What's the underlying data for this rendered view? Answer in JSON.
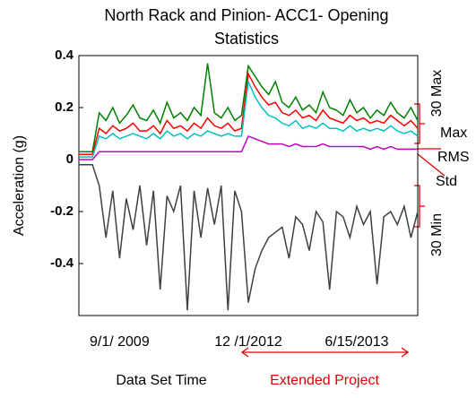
{
  "chart_data": {
    "type": "line",
    "title": "North Rack and Pinion- ACC1- Opening Statistics",
    "y_label": "Acceleration (g)",
    "x_label": "Data Set Time",
    "annotations": {
      "max30": "30 Max",
      "max": "Max",
      "rms": "RMS",
      "std": "Std",
      "min30": "30 Min",
      "extended": "Extended Project"
    },
    "xlim": [
      0,
      100
    ],
    "xticks": [
      {
        "value": 12,
        "label": "9/1/ 2009"
      },
      {
        "value": 50,
        "label": "12 /1/2012"
      },
      {
        "value": 82,
        "label": "6/15/2013"
      }
    ],
    "ylim": [
      -0.6,
      0.4
    ],
    "yticks": [
      0.4,
      0.2,
      0,
      -0.2,
      -0.4
    ],
    "x": [
      0,
      2,
      4,
      6,
      8,
      10,
      12,
      14,
      16,
      18,
      20,
      22,
      24,
      26,
      28,
      30,
      32,
      34,
      36,
      38,
      40,
      42,
      44,
      46,
      48,
      50,
      52,
      54,
      56,
      58,
      60,
      62,
      64,
      66,
      68,
      70,
      72,
      74,
      76,
      78,
      80,
      82,
      84,
      86,
      88,
      90,
      92,
      94,
      96,
      98,
      100
    ],
    "series": [
      {
        "color": "#008000",
        "values": [
          0.03,
          0.03,
          0.03,
          0.18,
          0.15,
          0.2,
          0.14,
          0.17,
          0.21,
          0.16,
          0.15,
          0.19,
          0.14,
          0.22,
          0.16,
          0.18,
          0.15,
          0.2,
          0.17,
          0.37,
          0.18,
          0.16,
          0.2,
          0.15,
          0.17,
          0.36,
          0.32,
          0.28,
          0.25,
          0.3,
          0.22,
          0.2,
          0.24,
          0.19,
          0.21,
          0.18,
          0.26,
          0.2,
          0.19,
          0.17,
          0.23,
          0.18,
          0.2,
          0.16,
          0.19,
          0.17,
          0.22,
          0.18,
          0.16,
          0.2,
          0.15
        ]
      },
      {
        "color": "#ff0000",
        "values": [
          0.02,
          0.02,
          0.02,
          0.12,
          0.1,
          0.13,
          0.11,
          0.12,
          0.14,
          0.11,
          0.11,
          0.13,
          0.1,
          0.15,
          0.12,
          0.13,
          0.11,
          0.14,
          0.12,
          0.16,
          0.13,
          0.12,
          0.14,
          0.11,
          0.12,
          0.33,
          0.28,
          0.24,
          0.21,
          0.22,
          0.18,
          0.17,
          0.19,
          0.16,
          0.17,
          0.15,
          0.19,
          0.16,
          0.15,
          0.14,
          0.17,
          0.15,
          0.16,
          0.14,
          0.15,
          0.14,
          0.17,
          0.15,
          0.13,
          0.15,
          0.12
        ]
      },
      {
        "color": "#00c0c0",
        "values": [
          0.01,
          0.01,
          0.01,
          0.09,
          0.08,
          0.1,
          0.08,
          0.09,
          0.1,
          0.09,
          0.08,
          0.1,
          0.08,
          0.11,
          0.09,
          0.1,
          0.08,
          0.1,
          0.09,
          0.11,
          0.1,
          0.09,
          0.1,
          0.09,
          0.09,
          0.3,
          0.24,
          0.2,
          0.17,
          0.16,
          0.14,
          0.13,
          0.15,
          0.12,
          0.13,
          0.12,
          0.14,
          0.12,
          0.12,
          0.11,
          0.13,
          0.11,
          0.12,
          0.11,
          0.12,
          0.11,
          0.13,
          0.11,
          0.1,
          0.11,
          0.09
        ]
      },
      {
        "color": "#c000c0",
        "values": [
          0.0,
          0.0,
          0.0,
          0.03,
          0.03,
          0.03,
          0.03,
          0.03,
          0.03,
          0.03,
          0.03,
          0.03,
          0.03,
          0.03,
          0.03,
          0.03,
          0.03,
          0.03,
          0.03,
          0.03,
          0.03,
          0.03,
          0.03,
          0.03,
          0.03,
          0.09,
          0.08,
          0.07,
          0.06,
          0.06,
          0.06,
          0.05,
          0.06,
          0.05,
          0.05,
          0.05,
          0.06,
          0.05,
          0.05,
          0.05,
          0.05,
          0.05,
          0.05,
          0.04,
          0.05,
          0.04,
          0.05,
          0.04,
          0.04,
          0.04,
          0.04
        ]
      },
      {
        "color": "#404040",
        "values": [
          -0.02,
          -0.02,
          -0.02,
          -0.1,
          -0.3,
          -0.12,
          -0.38,
          -0.15,
          -0.27,
          -0.1,
          -0.33,
          -0.12,
          -0.5,
          -0.14,
          -0.2,
          -0.1,
          -0.58,
          -0.12,
          -0.3,
          -0.11,
          -0.25,
          -0.1,
          -0.58,
          -0.12,
          -0.2,
          -0.55,
          -0.42,
          -0.35,
          -0.3,
          -0.28,
          -0.26,
          -0.38,
          -0.22,
          -0.25,
          -0.35,
          -0.2,
          -0.24,
          -0.5,
          -0.2,
          -0.22,
          -0.3,
          -0.18,
          -0.25,
          -0.2,
          -0.48,
          -0.22,
          -0.2,
          -0.25,
          -0.18,
          -0.3,
          -0.2
        ]
      }
    ]
  }
}
